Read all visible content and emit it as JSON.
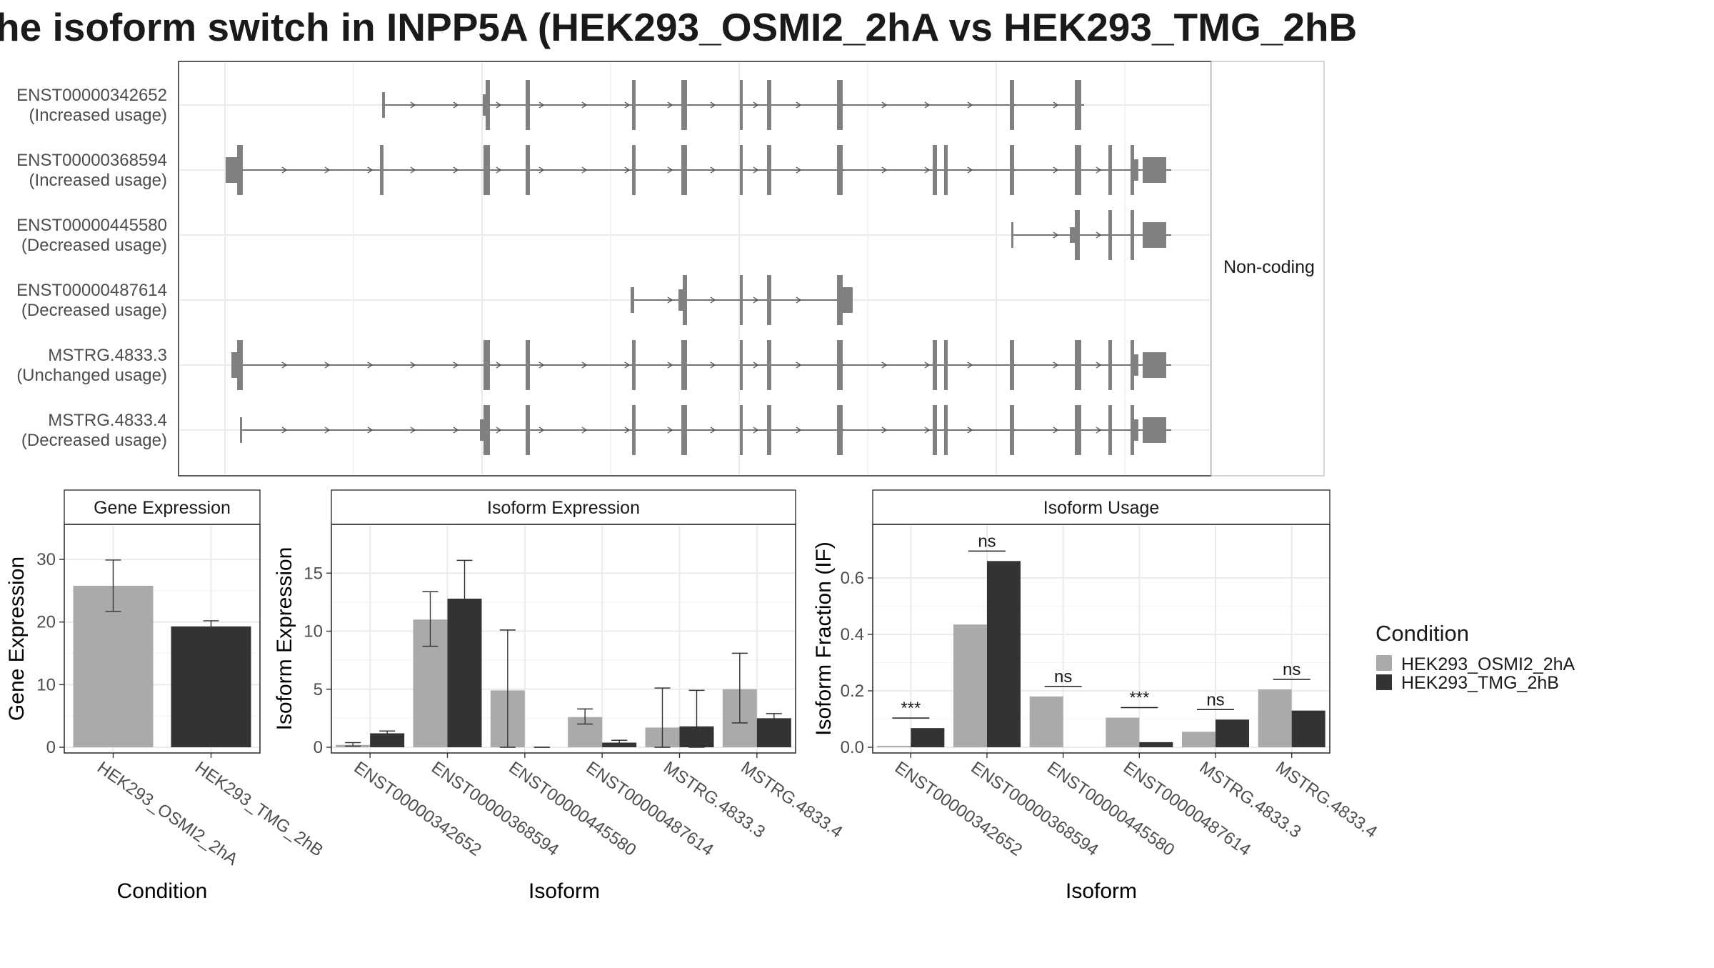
{
  "title": "he isoform switch in INPP5A (HEK293_OSMI2_2hA vs HEK293_TMG_2hB",
  "structure": {
    "strip_label": "Non-coding",
    "isoforms": [
      {
        "id": "ENST00000342652",
        "usage": "(Increased usage)"
      },
      {
        "id": "ENST00000368594",
        "usage": "(Increased usage)"
      },
      {
        "id": "ENST00000445580",
        "usage": "(Decreased usage)"
      },
      {
        "id": "ENST00000487614",
        "usage": "(Decreased usage)"
      },
      {
        "id": "MSTRG.4833.3",
        "usage": "(Unchanged usage)"
      },
      {
        "id": "MSTRG.4833.4",
        "usage": "(Decreased usage)"
      }
    ]
  },
  "legend": {
    "title": "Condition",
    "entries": [
      "HEK293_OSMI2_2hA",
      "HEK293_TMG_2hB"
    ]
  },
  "colors": {
    "cond_a": "#aaaaaa",
    "cond_b": "#333333",
    "exon": "#808080",
    "grid": "#ebebeb",
    "frame": "#333333"
  },
  "chart_data": [
    {
      "type": "bar",
      "strip": "Gene Expression",
      "xlabel": "Condition",
      "ylabel": "Gene Expression",
      "categories": [
        "HEK293_OSMI2_2hA",
        "HEK293_TMG_2hB"
      ],
      "values": [
        25.8,
        19.3
      ],
      "error": [
        [
          21.7,
          29.9
        ],
        [
          18.5,
          20.2
        ]
      ],
      "yticks": [
        0,
        10,
        20,
        30
      ],
      "ylim": [
        0,
        35.6
      ]
    },
    {
      "type": "bar",
      "strip": "Isoform Expression",
      "xlabel": "Isoform",
      "ylabel": "Isoform Expression",
      "categories": [
        "ENST00000342652",
        "ENST00000368594",
        "ENST00000445580",
        "ENST00000487614",
        "MSTRG.4833.3",
        "MSTRG.4833.4"
      ],
      "series": [
        {
          "name": "HEK293_OSMI2_2hA",
          "values": [
            0.2,
            11.0,
            4.9,
            2.6,
            1.7,
            5.0
          ],
          "error": [
            [
              0.1,
              0.4
            ],
            [
              8.7,
              13.4
            ],
            [
              0.0,
              10.1
            ],
            [
              2.0,
              3.3
            ],
            [
              0.0,
              5.1
            ],
            [
              2.1,
              8.1
            ]
          ]
        },
        {
          "name": "HEK293_TMG_2hB",
          "values": [
            1.2,
            12.8,
            0.0,
            0.4,
            1.8,
            2.5
          ],
          "error": [
            [
              1.0,
              1.4
            ],
            [
              9.5,
              16.1
            ],
            [
              0.0,
              0.0
            ],
            [
              0.2,
              0.6
            ],
            [
              0.0,
              4.9
            ],
            [
              2.1,
              2.9
            ]
          ]
        }
      ],
      "yticks": [
        0,
        5,
        10,
        15
      ],
      "ylim": [
        0,
        19.2
      ]
    },
    {
      "type": "bar",
      "strip": "Isoform Usage",
      "xlabel": "Isoform",
      "ylabel": "Isoform Fraction (IF)",
      "categories": [
        "ENST00000342652",
        "ENST00000368594",
        "ENST00000445580",
        "ENST00000487614",
        "MSTRG.4833.3",
        "MSTRG.4833.4"
      ],
      "series": [
        {
          "name": "HEK293_OSMI2_2hA",
          "values": [
            0.005,
            0.435,
            0.18,
            0.105,
            0.055,
            0.205
          ]
        },
        {
          "name": "HEK293_TMG_2hB",
          "values": [
            0.068,
            0.66,
            0.0,
            0.018,
            0.098,
            0.13
          ]
        }
      ],
      "significance": [
        "***",
        "ns",
        "ns",
        "***",
        "ns",
        "ns"
      ],
      "yticks": [
        0.0,
        0.2,
        0.4,
        0.6
      ],
      "ytick_labels": [
        "0.0",
        "0.2",
        "0.4",
        "0.6"
      ],
      "ylim": [
        0,
        0.79
      ]
    }
  ]
}
